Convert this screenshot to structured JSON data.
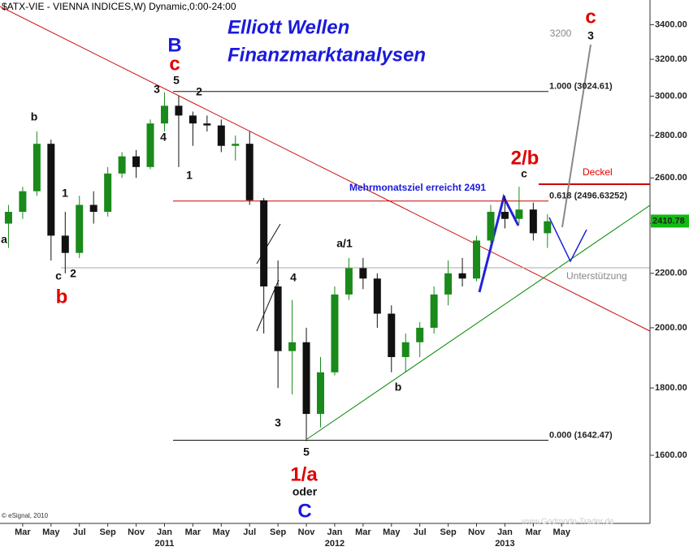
{
  "chart_data": {
    "type": "candlestick",
    "title": "$ATX-VIE - VIENNA INDICES,W) Dynamic,0:00-24:00",
    "headline": [
      "Elliott Wellen",
      "Finanzmarktanalysen"
    ],
    "x": [
      "2010-02",
      "2010-03",
      "2010-04",
      "2010-05",
      "2010-06",
      "2010-07",
      "2010-08",
      "2010-09",
      "2010-10",
      "2010-11",
      "2010-12",
      "2011-01",
      "2011-02",
      "2011-03",
      "2011-04",
      "2011-05",
      "2011-06",
      "2011-07",
      "2011-08",
      "2011-09",
      "2011-10",
      "2011-11",
      "2011-12",
      "2012-01",
      "2012-02",
      "2012-03",
      "2012-04",
      "2012-05",
      "2012-06",
      "2012-07",
      "2012-08",
      "2012-09",
      "2012-10",
      "2012-11",
      "2012-12",
      "2013-01",
      "2013-02",
      "2013-03",
      "2013-04"
    ],
    "open": [
      2400,
      2450,
      2540,
      2760,
      2350,
      2280,
      2480,
      2450,
      2620,
      2700,
      2650,
      2860,
      2950,
      2900,
      2860,
      2850,
      2750,
      2760,
      2500,
      2150,
      1920,
      1950,
      1720,
      1850,
      2120,
      2220,
      2180,
      2050,
      1900,
      1950,
      2000,
      2120,
      2200,
      2180,
      2330,
      2450,
      2420,
      2460,
      2360
    ],
    "high": [
      2480,
      2560,
      2820,
      2780,
      2450,
      2520,
      2540,
      2650,
      2720,
      2730,
      2880,
      3020,
      3000,
      2920,
      2900,
      2880,
      2800,
      2820,
      2510,
      2250,
      2100,
      2000,
      1900,
      2150,
      2260,
      2260,
      2200,
      2080,
      1980,
      2020,
      2150,
      2250,
      2260,
      2350,
      2480,
      2520,
      2560,
      2490,
      2440
    ],
    "low": [
      2300,
      2420,
      2520,
      2250,
      2200,
      2260,
      2400,
      2430,
      2600,
      2600,
      2640,
      2820,
      2650,
      2750,
      2820,
      2720,
      2680,
      2480,
      1980,
      1800,
      1780,
      1640,
      1680,
      1840,
      2100,
      2140,
      2000,
      1850,
      1850,
      1900,
      1980,
      2080,
      2150,
      2170,
      2320,
      2380,
      2400,
      2330,
      2300
    ],
    "close": [
      2450,
      2540,
      2760,
      2350,
      2280,
      2480,
      2450,
      2620,
      2700,
      2650,
      2860,
      2950,
      2900,
      2860,
      2850,
      2750,
      2760,
      2500,
      2150,
      1920,
      1950,
      1720,
      1850,
      2120,
      2220,
      2180,
      2050,
      1900,
      1950,
      2000,
      2120,
      2200,
      2180,
      2330,
      2450,
      2420,
      2460,
      2360,
      2410
    ],
    "up_color": "#1a8a1a",
    "down_color": "#111111",
    "xlim": [
      "2010-01",
      "2013-11"
    ],
    "xticks": [
      {
        "value": "2010-03",
        "label": "Mar"
      },
      {
        "value": "2010-05",
        "label": "May"
      },
      {
        "value": "2010-07",
        "label": "Jul"
      },
      {
        "value": "2010-09",
        "label": "Sep"
      },
      {
        "value": "2010-11",
        "label": "Nov"
      },
      {
        "value": "2011-01",
        "label": "Jan"
      },
      {
        "value": "2011-03",
        "label": "Mar"
      },
      {
        "value": "2011-05",
        "label": "May"
      },
      {
        "value": "2011-07",
        "label": "Jul"
      },
      {
        "value": "2011-09",
        "label": "Sep"
      },
      {
        "value": "2011-11",
        "label": "Nov"
      },
      {
        "value": "2012-01",
        "label": "Jan"
      },
      {
        "value": "2012-03",
        "label": "Mar"
      },
      {
        "value": "2012-05",
        "label": "May"
      },
      {
        "value": "2012-07",
        "label": "Jul"
      },
      {
        "value": "2012-09",
        "label": "Sep"
      },
      {
        "value": "2012-11",
        "label": "Nov"
      },
      {
        "value": "2013-01",
        "label": "Jan"
      },
      {
        "value": "2013-03",
        "label": "Mar"
      },
      {
        "value": "2013-05",
        "label": "May"
      }
    ],
    "year_labels": [
      {
        "value": "2011-01",
        "label": "2011"
      },
      {
        "value": "2012-01",
        "label": "2012"
      },
      {
        "value": "2013-01",
        "label": "2013"
      }
    ],
    "ylim": [
      1420,
      3550
    ],
    "log_scale": true,
    "yticks": [
      {
        "value": 1600,
        "label": "1600.00"
      },
      {
        "value": 1800,
        "label": "1800.00"
      },
      {
        "value": 2000,
        "label": "2000.00"
      },
      {
        "value": 2200,
        "label": "2200.00"
      },
      {
        "value": 2400,
        "label": "2400.00"
      },
      {
        "value": 2600,
        "label": "2600.00"
      },
      {
        "value": 2800,
        "label": "2800.00"
      },
      {
        "value": 3000,
        "label": "3000.00"
      },
      {
        "value": 3200,
        "label": "3200.00"
      },
      {
        "value": 3400,
        "label": "3400.00"
      }
    ],
    "last_value": 2410.78,
    "last_color": "#11bb11",
    "levels": [
      {
        "value": 3024.61,
        "label": "1.000 (3024.61)"
      },
      {
        "value": 2496.63252,
        "label": "0.618 (2496.63252)"
      },
      {
        "value": 1642.47,
        "label": "0.000 (1642.47)"
      }
    ],
    "annotations": [
      "a",
      "b",
      "c",
      "2",
      "b",
      "3",
      "5",
      "B",
      "c",
      "2",
      "4",
      "1",
      "1",
      "4",
      "3",
      "5",
      "1/a",
      "oder",
      "C",
      "a/1",
      "b",
      "2/b",
      "c",
      "c",
      "3",
      "3200"
    ],
    "notes": [
      "Mehrmonatsziel erreicht 2491",
      "Deckel",
      "Unterstützung"
    ],
    "copyright": "© eSignal, 2010",
    "watermark": "www.Godmode-Trader.de"
  }
}
